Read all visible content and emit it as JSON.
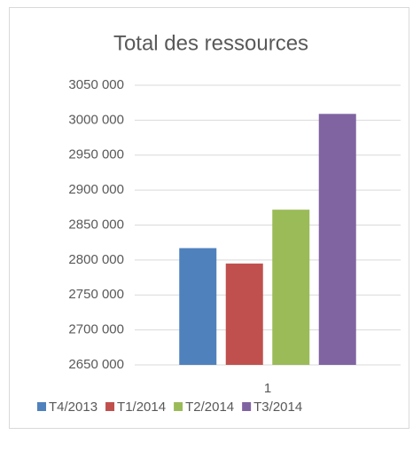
{
  "chart_data": {
    "type": "bar",
    "title": "Total des ressources",
    "categories": [
      "1"
    ],
    "series": [
      {
        "name": "T4/2013",
        "color": "#4f81bd",
        "values": [
          2817000
        ]
      },
      {
        "name": "T1/2014",
        "color": "#c0504d",
        "values": [
          2795000
        ]
      },
      {
        "name": "T2/2014",
        "color": "#9bbb59",
        "values": [
          2872000
        ]
      },
      {
        "name": "T3/2014",
        "color": "#8064a2",
        "values": [
          3009000
        ]
      }
    ],
    "ylim": [
      2650000,
      3050000
    ],
    "yticks": [
      {
        "value": 2650000,
        "label": "2650 000"
      },
      {
        "value": 2700000,
        "label": "2700 000"
      },
      {
        "value": 2750000,
        "label": "2750 000"
      },
      {
        "value": 2800000,
        "label": "2800 000"
      },
      {
        "value": 2850000,
        "label": "2850 000"
      },
      {
        "value": 2900000,
        "label": "2900 000"
      },
      {
        "value": 2950000,
        "label": "2950 000"
      },
      {
        "value": 3000000,
        "label": "3000 000"
      },
      {
        "value": 3050000,
        "label": "3050 000"
      }
    ],
    "grid": true,
    "legend": "bottom"
  }
}
